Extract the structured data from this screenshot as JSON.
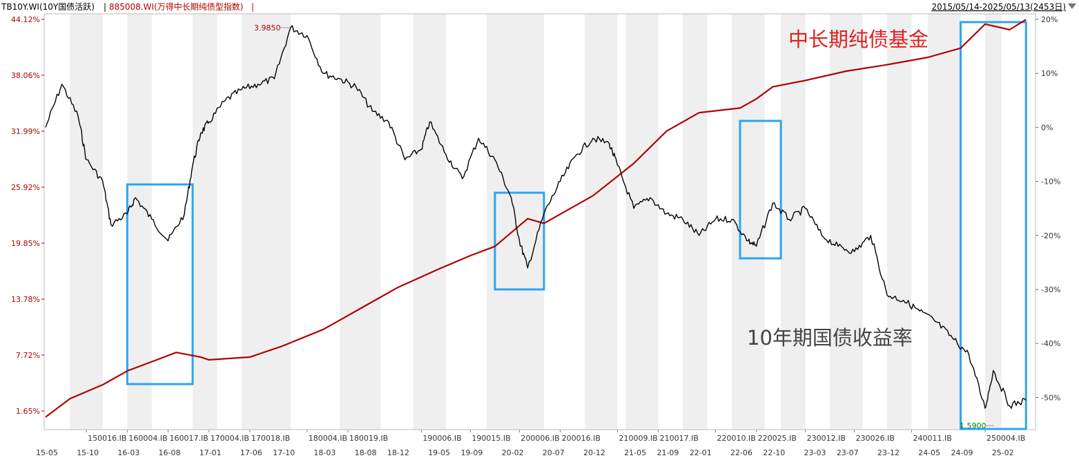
{
  "header": {
    "series1_label": "TB10Y.WI(10Y国债活跃)",
    "separator": "|",
    "series2_label": "885008.WI(万得中长期纯债型指数)",
    "range_text": "2015/05/14-2025/05/13(2453日)",
    "dropdown_icon": "triangle-down-icon"
  },
  "colors": {
    "yield_line": "#000000",
    "index_line": "#b00000",
    "highlight_box": "#2aa5f0",
    "band": "#efefef",
    "annotation_red": "#e02020",
    "annotation_gray": "#444444",
    "min_marker": "#008000"
  },
  "annotations": {
    "fund_label": "中长期纯债基金",
    "yield_label": "10年期国债收益率",
    "max_marker": "3.9850",
    "min_marker": "1.5900"
  },
  "chart_data": {
    "type": "line",
    "title": "",
    "x_dates": [
      "2015-05",
      "2015-10",
      "2016-03",
      "2016-08",
      "2017-01",
      "2017-06",
      "2017-10",
      "2018-03",
      "2018-08",
      "2018-12",
      "2019-05",
      "2019-09",
      "2020-02",
      "2020-07",
      "2020-12",
      "2021-05",
      "2021-09",
      "2022-01",
      "2022-06",
      "2022-10",
      "2023-03",
      "2023-07",
      "2023-12",
      "2024-05",
      "2024-09",
      "2025-02"
    ],
    "x_tick_labels": [
      "15-05",
      "15-10",
      "16-03",
      "16-08",
      "17-01",
      "17-06",
      "17-10",
      "18-03",
      "18-08",
      "18-12",
      "19-05",
      "19-09",
      "20-02",
      "20-07",
      "20-12",
      "21-05",
      "21-09",
      "22-01",
      "22-06",
      "22-10",
      "23-03",
      "23-07",
      "23-12",
      "24-05",
      "24-09",
      "25-02"
    ],
    "contract_labels": [
      "150016.IB",
      "160004.IB",
      "160017.IB",
      "170004.IB",
      "170018.IB",
      "180004.IB",
      "180019.IB",
      "190006.IB",
      "190015.IB",
      "200006.IB",
      "200016.IB",
      "210009.IB",
      "210017.IB",
      "220010.IB",
      "220025.IB",
      "230012.IB",
      "230026.IB",
      "240011.IB",
      "250004.IB"
    ],
    "contract_dates": [
      "2015-10",
      "2016-03",
      "2016-08",
      "2017-01",
      "2017-06",
      "2018-01",
      "2018-06",
      "2019-03",
      "2019-09",
      "2020-03",
      "2020-08",
      "2021-03",
      "2021-08",
      "2022-03",
      "2022-08",
      "2023-02",
      "2023-08",
      "2024-03",
      "2024-12"
    ],
    "gray_bands": [
      [
        "2015-08",
        "2015-12"
      ],
      [
        "2016-03",
        "2016-06"
      ],
      [
        "2016-11",
        "2017-02"
      ],
      [
        "2017-05",
        "2017-11"
      ],
      [
        "2018-05",
        "2018-10"
      ],
      [
        "2019-02",
        "2019-06"
      ],
      [
        "2019-11",
        "2020-06"
      ],
      [
        "2020-11",
        "2021-03"
      ],
      [
        "2021-04",
        "2021-08"
      ],
      [
        "2021-11",
        "2022-02"
      ],
      [
        "2022-05",
        "2022-09"
      ],
      [
        "2022-11",
        "2023-02"
      ],
      [
        "2023-05",
        "2023-09"
      ],
      [
        "2023-12",
        "2024-03"
      ],
      [
        "2024-05",
        "2024-09"
      ],
      [
        "2024-12",
        "2025-02"
      ]
    ],
    "y_left": {
      "ticks": [
        1.65,
        7.72,
        13.78,
        19.85,
        25.92,
        31.99,
        38.06,
        44.12
      ],
      "tick_labels": [
        "1.65%",
        "7.72%",
        "13.78%",
        "19.85%",
        "25.92%",
        "31.99%",
        "38.06%",
        "44.12%"
      ],
      "range": [
        1.65,
        44.12
      ]
    },
    "y_right": {
      "ticks": [
        -50,
        -40,
        -30,
        -20,
        -10,
        0,
        10,
        20
      ],
      "tick_labels": [
        "-50%",
        "-40%",
        "-30%",
        "-20%",
        "-10%",
        "0%",
        "10%",
        "20%"
      ],
      "range": [
        -52.5,
        20.0
      ]
    },
    "series": [
      {
        "name": "TB10Y.WI(10Y国债活跃)",
        "axis": "right",
        "x": [
          "2015-05",
          "2015-07",
          "2015-09",
          "2015-10",
          "2015-12",
          "2016-01",
          "2016-03",
          "2016-04",
          "2016-06",
          "2016-08",
          "2016-10",
          "2016-11",
          "2016-12",
          "2017-01",
          "2017-03",
          "2017-05",
          "2017-07",
          "2017-09",
          "2017-11",
          "2018-01",
          "2018-03",
          "2018-05",
          "2018-07",
          "2018-09",
          "2018-11",
          "2019-01",
          "2019-03",
          "2019-04",
          "2019-06",
          "2019-08",
          "2019-10",
          "2019-12",
          "2020-02",
          "2020-03",
          "2020-04",
          "2020-06",
          "2020-08",
          "2020-10",
          "2020-12",
          "2021-02",
          "2021-03",
          "2021-05",
          "2021-07",
          "2021-09",
          "2021-11",
          "2022-01",
          "2022-03",
          "2022-05",
          "2022-07",
          "2022-08",
          "2022-10",
          "2022-12",
          "2023-02",
          "2023-04",
          "2023-06",
          "2023-08",
          "2023-10",
          "2023-12",
          "2024-02",
          "2024-04",
          "2024-06",
          "2024-08",
          "2024-10",
          "2024-12",
          "2025-01",
          "2025-03",
          "2025-05"
        ],
        "values": [
          0.0,
          8.0,
          2.0,
          -6.0,
          -10.0,
          -18.0,
          -16.0,
          -13.0,
          -17.0,
          -21.0,
          -16.0,
          -7.0,
          -1.0,
          1.0,
          5.0,
          7.0,
          8.0,
          9.0,
          18.5,
          17.0,
          10.0,
          9.0,
          7.5,
          3.0,
          1.0,
          -6.0,
          -4.0,
          1.0,
          -5.0,
          -9.5,
          -2.0,
          -6.0,
          -13.0,
          -21.0,
          -26.0,
          -16.0,
          -10.0,
          -5.0,
          -2.0,
          -3.0,
          -7.0,
          -15.0,
          -13.0,
          -16.0,
          -17.0,
          -20.0,
          -17.0,
          -17.0,
          -21.0,
          -22.0,
          -14.0,
          -17.0,
          -15.0,
          -20.0,
          -22.0,
          -23.0,
          -20.0,
          -31.0,
          -32.0,
          -34.0,
          -36.0,
          -39.0,
          -42.0,
          -52.0,
          -45.0,
          -51.5,
          -50.5
        ],
        "value_unit": "%",
        "max_label": "3.9850",
        "min_label": "1.5900"
      },
      {
        "name": "885008.WI(万得中长期纯债型指数)",
        "axis": "left",
        "x": [
          "2015-05",
          "2015-08",
          "2015-12",
          "2016-03",
          "2016-06",
          "2016-09",
          "2016-12",
          "2017-01",
          "2017-06",
          "2017-10",
          "2018-03",
          "2018-08",
          "2018-12",
          "2019-05",
          "2019-09",
          "2019-12",
          "2020-02",
          "2020-04",
          "2020-06",
          "2020-12",
          "2021-05",
          "2021-09",
          "2022-01",
          "2022-06",
          "2022-08",
          "2022-10",
          "2023-02",
          "2023-07",
          "2023-12",
          "2024-05",
          "2024-09",
          "2024-12",
          "2025-03",
          "2025-05"
        ],
        "values": [
          1.0,
          3.0,
          4.5,
          6.0,
          7.0,
          8.0,
          7.5,
          7.2,
          7.5,
          8.7,
          10.5,
          13.0,
          15.0,
          17.0,
          18.5,
          19.5,
          21.0,
          22.5,
          22.0,
          25.0,
          28.5,
          32.0,
          34.0,
          34.5,
          35.5,
          36.8,
          37.5,
          38.5,
          39.2,
          40.0,
          41.0,
          43.6,
          43.0,
          44.1
        ],
        "value_unit": "%"
      }
    ],
    "highlight_boxes": [
      [
        "2016-03",
        "2016-11"
      ],
      [
        "2019-12",
        "2020-06"
      ],
      [
        "2022-06",
        "2022-11"
      ],
      [
        "2024-09",
        "2025-05"
      ]
    ],
    "grid": false,
    "legend": "top-left"
  }
}
